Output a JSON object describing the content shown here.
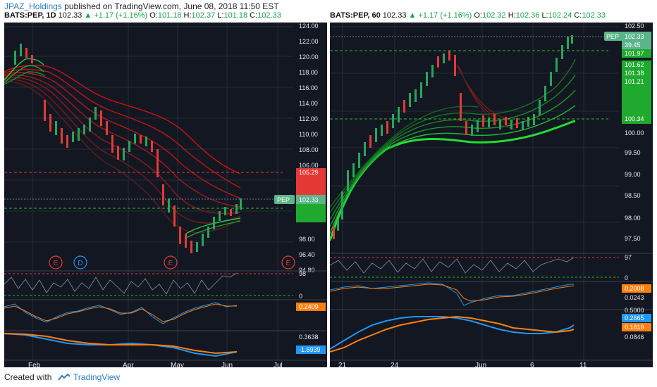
{
  "header": {
    "user": "JPAZ_Holdings",
    "publish_text": "published on TradingView.com, June 08, 2018 11:50 EST"
  },
  "left": {
    "quote": {
      "symbol": "BATS:PEP, 1D",
      "last": "102.33",
      "change": "+1.17 (+1.16%)",
      "o_label": "O:",
      "o": "101.18",
      "h_label": "H:",
      "h": "102.37",
      "l_label": "L:",
      "l": "101.18",
      "c_label": "C:",
      "c": "102.33"
    },
    "price_axis": [
      "124.00",
      "122.00",
      "120.00",
      "118.00",
      "116.00",
      "114.00",
      "112.00",
      "110.00",
      "108.00",
      "106.00",
      "98.00",
      "96.40",
      "94.80"
    ],
    "badge_price": "102.33",
    "badge_symbol": "PEP",
    "red_level": "105.29",
    "event_markers": [
      "E",
      "D",
      "E",
      "E"
    ],
    "x_axis": [
      "Feb",
      "Apr",
      "May",
      "Jun",
      "Jul"
    ],
    "osc1": {
      "top": "98",
      "zero": "0"
    },
    "osc2": {
      "value": "0.2409"
    },
    "osc3": {
      "top": "0.3638",
      "value": "-1.6939"
    }
  },
  "right": {
    "quote": {
      "symbol": "BATS:PEP, 60",
      "last": "102.33",
      "change": "+1.17 (+1.16%)",
      "o_label": "O:",
      "o": "102.32",
      "h_label": "H:",
      "h": "102.36",
      "l_label": "L:",
      "l": "102.24",
      "c_label": "C:",
      "c": "102.33"
    },
    "price_axis": [
      "102.50",
      "101.62",
      "101.38",
      "101.21",
      "100.00",
      "99.50",
      "99.00",
      "98.50",
      "98.00",
      "97.50"
    ],
    "badge_price": "102.33",
    "badge_symbol": "PEP",
    "badge2": "39.45",
    "level1": "101.97",
    "level2": "100.34",
    "x_axis": [
      "21",
      "24",
      "Jun",
      "6",
      "11"
    ],
    "osc1": {
      "top": "97",
      "zero": "0"
    },
    "osc2": {
      "value1": "0.2008",
      "value2": "0.0243"
    },
    "osc3": {
      "top": "0.5000",
      "v1": "0.2665",
      "v2": "0.1819",
      "v3": "0.0846"
    }
  },
  "footer": {
    "created": "Created with",
    "brand": "TradingView"
  },
  "colors": {
    "green": "#14a34a",
    "red": "#e02020",
    "orange": "#ff7f0e",
    "blue": "#2196f3",
    "panel_bg": "#131722"
  }
}
